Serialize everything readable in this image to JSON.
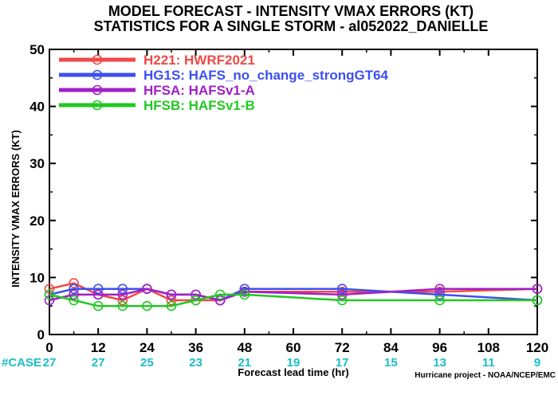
{
  "chart_data": {
    "type": "line",
    "title": "MODEL FORECAST - INTENSITY VMAX ERRORS (KT)",
    "subtitle": "STATISTICS FOR A SINGLE STORM - al052022_DANIELLE",
    "xlabel": "Forecast lead time (hr)",
    "ylabel": "INTENSITY VMAX ERRORS (KT)",
    "xlim": [
      0,
      120
    ],
    "ylim": [
      0,
      50
    ],
    "x_ticks": [
      "0",
      "12",
      "24",
      "36",
      "48",
      "60",
      "72",
      "84",
      "96",
      "108",
      "120"
    ],
    "y_ticks": [
      "0",
      "10",
      "20",
      "30",
      "40",
      "50"
    ],
    "legend_position": "top-left",
    "series": [
      {
        "name": "H221: HWRF2021",
        "color": "#f04848",
        "x": [
          0,
          6,
          12,
          18,
          24,
          30,
          36,
          42,
          48,
          72,
          96,
          120
        ],
        "y": [
          8,
          9,
          7,
          6,
          8,
          6,
          6,
          6,
          7.5,
          7.5,
          7.5,
          8
        ]
      },
      {
        "name": "HG1S: HAFS_no_change_strongGT64",
        "color": "#3c50f0",
        "x": [
          0,
          6,
          12,
          18,
          24,
          30,
          36,
          42,
          48,
          72,
          96,
          120
        ],
        "y": [
          7,
          8,
          8,
          8,
          8,
          7,
          7,
          6,
          8,
          8,
          7,
          6
        ]
      },
      {
        "name": "HFSA: HAFSv1-A",
        "color": "#a020c8",
        "x": [
          0,
          6,
          12,
          18,
          24,
          30,
          36,
          42,
          48,
          72,
          96,
          120
        ],
        "y": [
          6,
          7,
          7,
          7,
          8,
          7,
          7,
          6,
          7.5,
          7,
          8,
          8
        ]
      },
      {
        "name": "HFSB: HAFSv1-B",
        "color": "#22c822",
        "x": [
          0,
          6,
          12,
          18,
          24,
          30,
          36,
          42,
          48,
          72,
          96,
          120
        ],
        "y": [
          7,
          6,
          5,
          5,
          5,
          5,
          6,
          7,
          7,
          6,
          6,
          6
        ]
      }
    ],
    "cases_label": "#CASE",
    "cases": [
      "27",
      "27",
      "25",
      "23",
      "21",
      "19",
      "17",
      "15",
      "13",
      "11",
      "9"
    ],
    "credit": "Hurricane project - NOAA/NCEP/EMC"
  }
}
